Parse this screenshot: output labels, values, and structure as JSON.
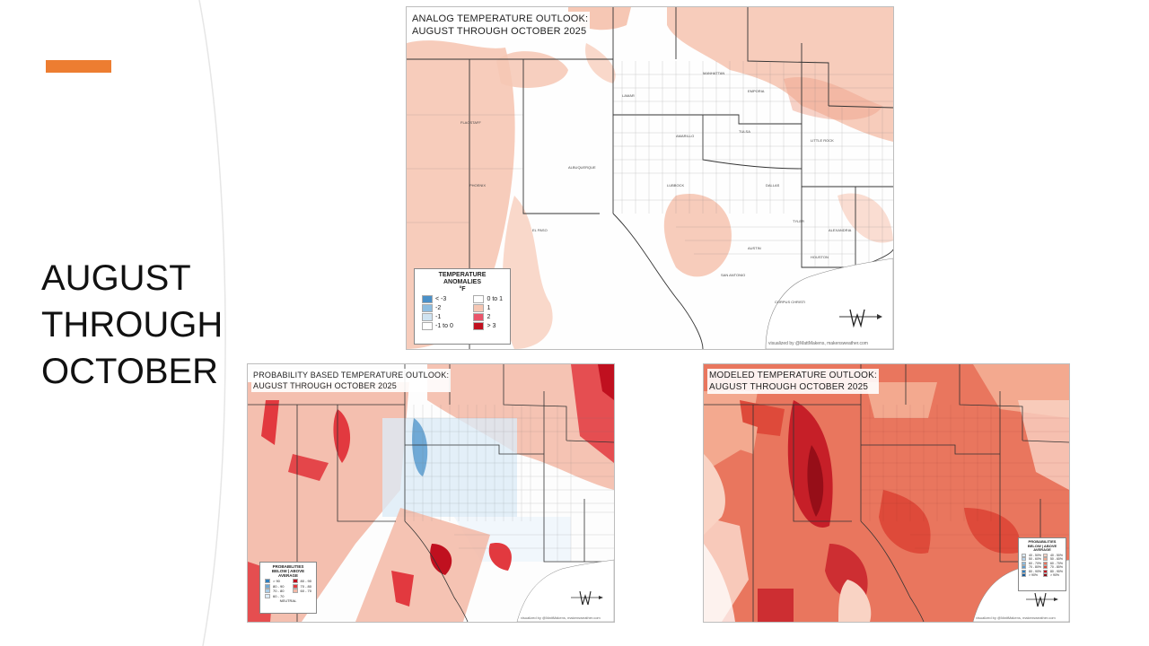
{
  "slide": {
    "title_lines": [
      "AUGUST",
      "THROUGH",
      "OCTOBER"
    ],
    "accent_color": "#ED7D31"
  },
  "maps": {
    "analog": {
      "title_line1": "ANALOG TEMPERATURE OUTLOOK:",
      "title_line2": "AUGUST THROUGH OCTOBER 2025",
      "legend": {
        "heading1": "TEMPERATURE",
        "heading2": "ANOMALIES",
        "unit": "°F",
        "left": [
          {
            "label": "< -3",
            "color": "#4a90c8"
          },
          {
            "label": "-2",
            "color": "#8dbde0"
          },
          {
            "label": "-1",
            "color": "#cfe3f1"
          },
          {
            "label": "-1 to 0",
            "color": "#ffffff"
          }
        ],
        "right": [
          {
            "label": "0 to 1",
            "color": "#ffffff"
          },
          {
            "label": "1",
            "color": "#f6c7b4"
          },
          {
            "label": "2",
            "color": "#e9546a"
          },
          {
            "label": "> 3",
            "color": "#c0101f"
          }
        ]
      },
      "logo_text": "Makens Weather",
      "credit": "visualized by @MattMakens, makensweather.com"
    },
    "probability": {
      "title_line1": "PROBABILITY BASED TEMPERATURE OUTLOOK:",
      "title_line2": "AUGUST THROUGH OCTOBER 2025",
      "legend": {
        "heading1": "PROBABILITIES",
        "heading2": "BELOW  |  ABOVE",
        "heading3": "AVERAGE",
        "left": [
          {
            "label": "> 90",
            "color": "#2f7fbf"
          },
          {
            "label": "80 - 90",
            "color": "#6fa9d6"
          },
          {
            "label": "70 - 80",
            "color": "#a9cde8"
          },
          {
            "label": "60 - 70",
            "color": "#dcebf6"
          }
        ],
        "right": [
          {
            "label": "80 - 90",
            "color": "#c0101f"
          },
          {
            "label": "70 - 80",
            "color": "#e2393f"
          },
          {
            "label": "60 - 70",
            "color": "#f3b8a6"
          }
        ],
        "neutral": "NEUTRAL"
      },
      "logo_text": "Makens Weather",
      "credit": "visualized by @MattMakens, makensweather.com"
    },
    "modeled": {
      "title_line1": "MODELED TEMPERATURE OUTLOOK:",
      "title_line2": "AUGUST THROUGH OCTOBER 2025",
      "legend": {
        "heading1": "PROBABILITIES",
        "heading2": "BELOW  |  ABOVE",
        "heading3": "AVERAGE",
        "left": [
          {
            "label": "40 - 50%",
            "color": "#dcebf6"
          },
          {
            "label": "50 - 60%",
            "color": "#b7d4ec"
          },
          {
            "label": "60 - 70%",
            "color": "#8dbde0"
          },
          {
            "label": "70 - 80%",
            "color": "#5a9bd0"
          },
          {
            "label": "80 - 90%",
            "color": "#2f7fbf"
          },
          {
            "label": "> 90%",
            "color": "#155a99"
          }
        ],
        "right": [
          {
            "label": "40 - 50%",
            "color": "#f9d3c4"
          },
          {
            "label": "50 - 60%",
            "color": "#f3a98f"
          },
          {
            "label": "60 - 70%",
            "color": "#e9765e"
          },
          {
            "label": "70 - 80%",
            "color": "#de4a3a"
          },
          {
            "label": "80 - 90%",
            "color": "#c0101f"
          },
          {
            "label": "> 90%",
            "color": "#8a0a14"
          }
        ]
      },
      "logo_text": "Makens Weather",
      "credit": "visualized by @MattMakens, makensweather.com"
    }
  }
}
